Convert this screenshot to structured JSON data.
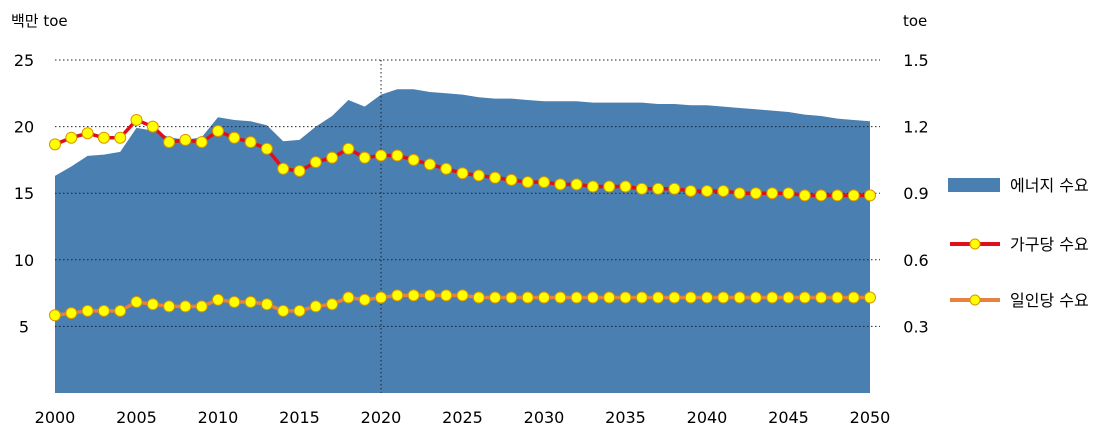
{
  "chart_data": {
    "type": "area",
    "left_axis": {
      "unit": "백만 toe",
      "ticks": [
        5,
        10,
        15,
        20,
        25
      ],
      "tick_labels": [
        "5",
        "10",
        "15",
        "20",
        "25"
      ],
      "range": [
        0,
        25
      ]
    },
    "right_axis": {
      "unit": "toe",
      "ticks": [
        0.3,
        0.6,
        0.9,
        1.2,
        1.5
      ],
      "tick_labels": [
        "0.3",
        "0.6",
        "0.9",
        "1.2",
        "1.5"
      ],
      "range": [
        0,
        1.5
      ]
    },
    "x_ticks": [
      2000,
      2005,
      2010,
      2015,
      2020,
      2025,
      2030,
      2035,
      2040,
      2045,
      2050
    ],
    "x_tick_labels": [
      "2000",
      "2005",
      "2010",
      "2015",
      "2020",
      "2025",
      "2030",
      "2035",
      "2040",
      "2045",
      "2050"
    ],
    "x_range": [
      2000,
      2050
    ],
    "gridlines_right": [
      0.3,
      0.6,
      0.9,
      1.2,
      1.5
    ],
    "divider_year": 2020,
    "x": [
      2000,
      2001,
      2002,
      2003,
      2004,
      2005,
      2006,
      2007,
      2008,
      2009,
      2010,
      2011,
      2012,
      2013,
      2014,
      2015,
      2016,
      2017,
      2018,
      2019,
      2020,
      2021,
      2022,
      2023,
      2024,
      2025,
      2026,
      2027,
      2028,
      2029,
      2030,
      2031,
      2032,
      2033,
      2034,
      2035,
      2036,
      2037,
      2038,
      2039,
      2040,
      2041,
      2042,
      2043,
      2044,
      2045,
      2046,
      2047,
      2048,
      2049,
      2050
    ],
    "series": [
      {
        "name": "에너지 수요",
        "axis": "left",
        "style": "area",
        "color": "#4a7fb2",
        "values": [
          16.3,
          17.0,
          17.8,
          17.9,
          18.1,
          19.9,
          19.7,
          19.2,
          19.0,
          19.2,
          20.7,
          20.5,
          20.4,
          20.1,
          18.9,
          19.0,
          20.0,
          20.8,
          22.0,
          21.5,
          22.4,
          22.8,
          22.8,
          22.6,
          22.5,
          22.4,
          22.2,
          22.1,
          22.1,
          22.0,
          21.9,
          21.9,
          21.9,
          21.8,
          21.8,
          21.8,
          21.8,
          21.7,
          21.7,
          21.6,
          21.6,
          21.5,
          21.4,
          21.3,
          21.2,
          21.1,
          20.9,
          20.8,
          20.6,
          20.5,
          20.4
        ]
      },
      {
        "name": "가구당 수요",
        "axis": "right",
        "style": "line-markers",
        "line_color": "#e0101a",
        "marker_color": "#ffff00",
        "values": [
          1.12,
          1.15,
          1.17,
          1.15,
          1.15,
          1.23,
          1.2,
          1.13,
          1.14,
          1.13,
          1.18,
          1.15,
          1.13,
          1.1,
          1.01,
          1.0,
          1.04,
          1.06,
          1.1,
          1.06,
          1.07,
          1.07,
          1.05,
          1.03,
          1.01,
          0.99,
          0.98,
          0.97,
          0.96,
          0.95,
          0.95,
          0.94,
          0.94,
          0.93,
          0.93,
          0.93,
          0.92,
          0.92,
          0.92,
          0.91,
          0.91,
          0.91,
          0.9,
          0.9,
          0.9,
          0.9,
          0.89,
          0.89,
          0.89,
          0.89,
          0.89
        ]
      },
      {
        "name": "일인당 수요",
        "axis": "right",
        "style": "line-markers",
        "line_color": "#e88040",
        "marker_color": "#ffff00",
        "values": [
          0.35,
          0.36,
          0.37,
          0.37,
          0.37,
          0.41,
          0.4,
          0.39,
          0.39,
          0.39,
          0.42,
          0.41,
          0.41,
          0.4,
          0.37,
          0.37,
          0.39,
          0.4,
          0.43,
          0.42,
          0.43,
          0.44,
          0.44,
          0.44,
          0.44,
          0.44,
          0.43,
          0.43,
          0.43,
          0.43,
          0.43,
          0.43,
          0.43,
          0.43,
          0.43,
          0.43,
          0.43,
          0.43,
          0.43,
          0.43,
          0.43,
          0.43,
          0.43,
          0.43,
          0.43,
          0.43,
          0.43,
          0.43,
          0.43,
          0.43,
          0.43
        ]
      }
    ],
    "legend_position": "right"
  }
}
